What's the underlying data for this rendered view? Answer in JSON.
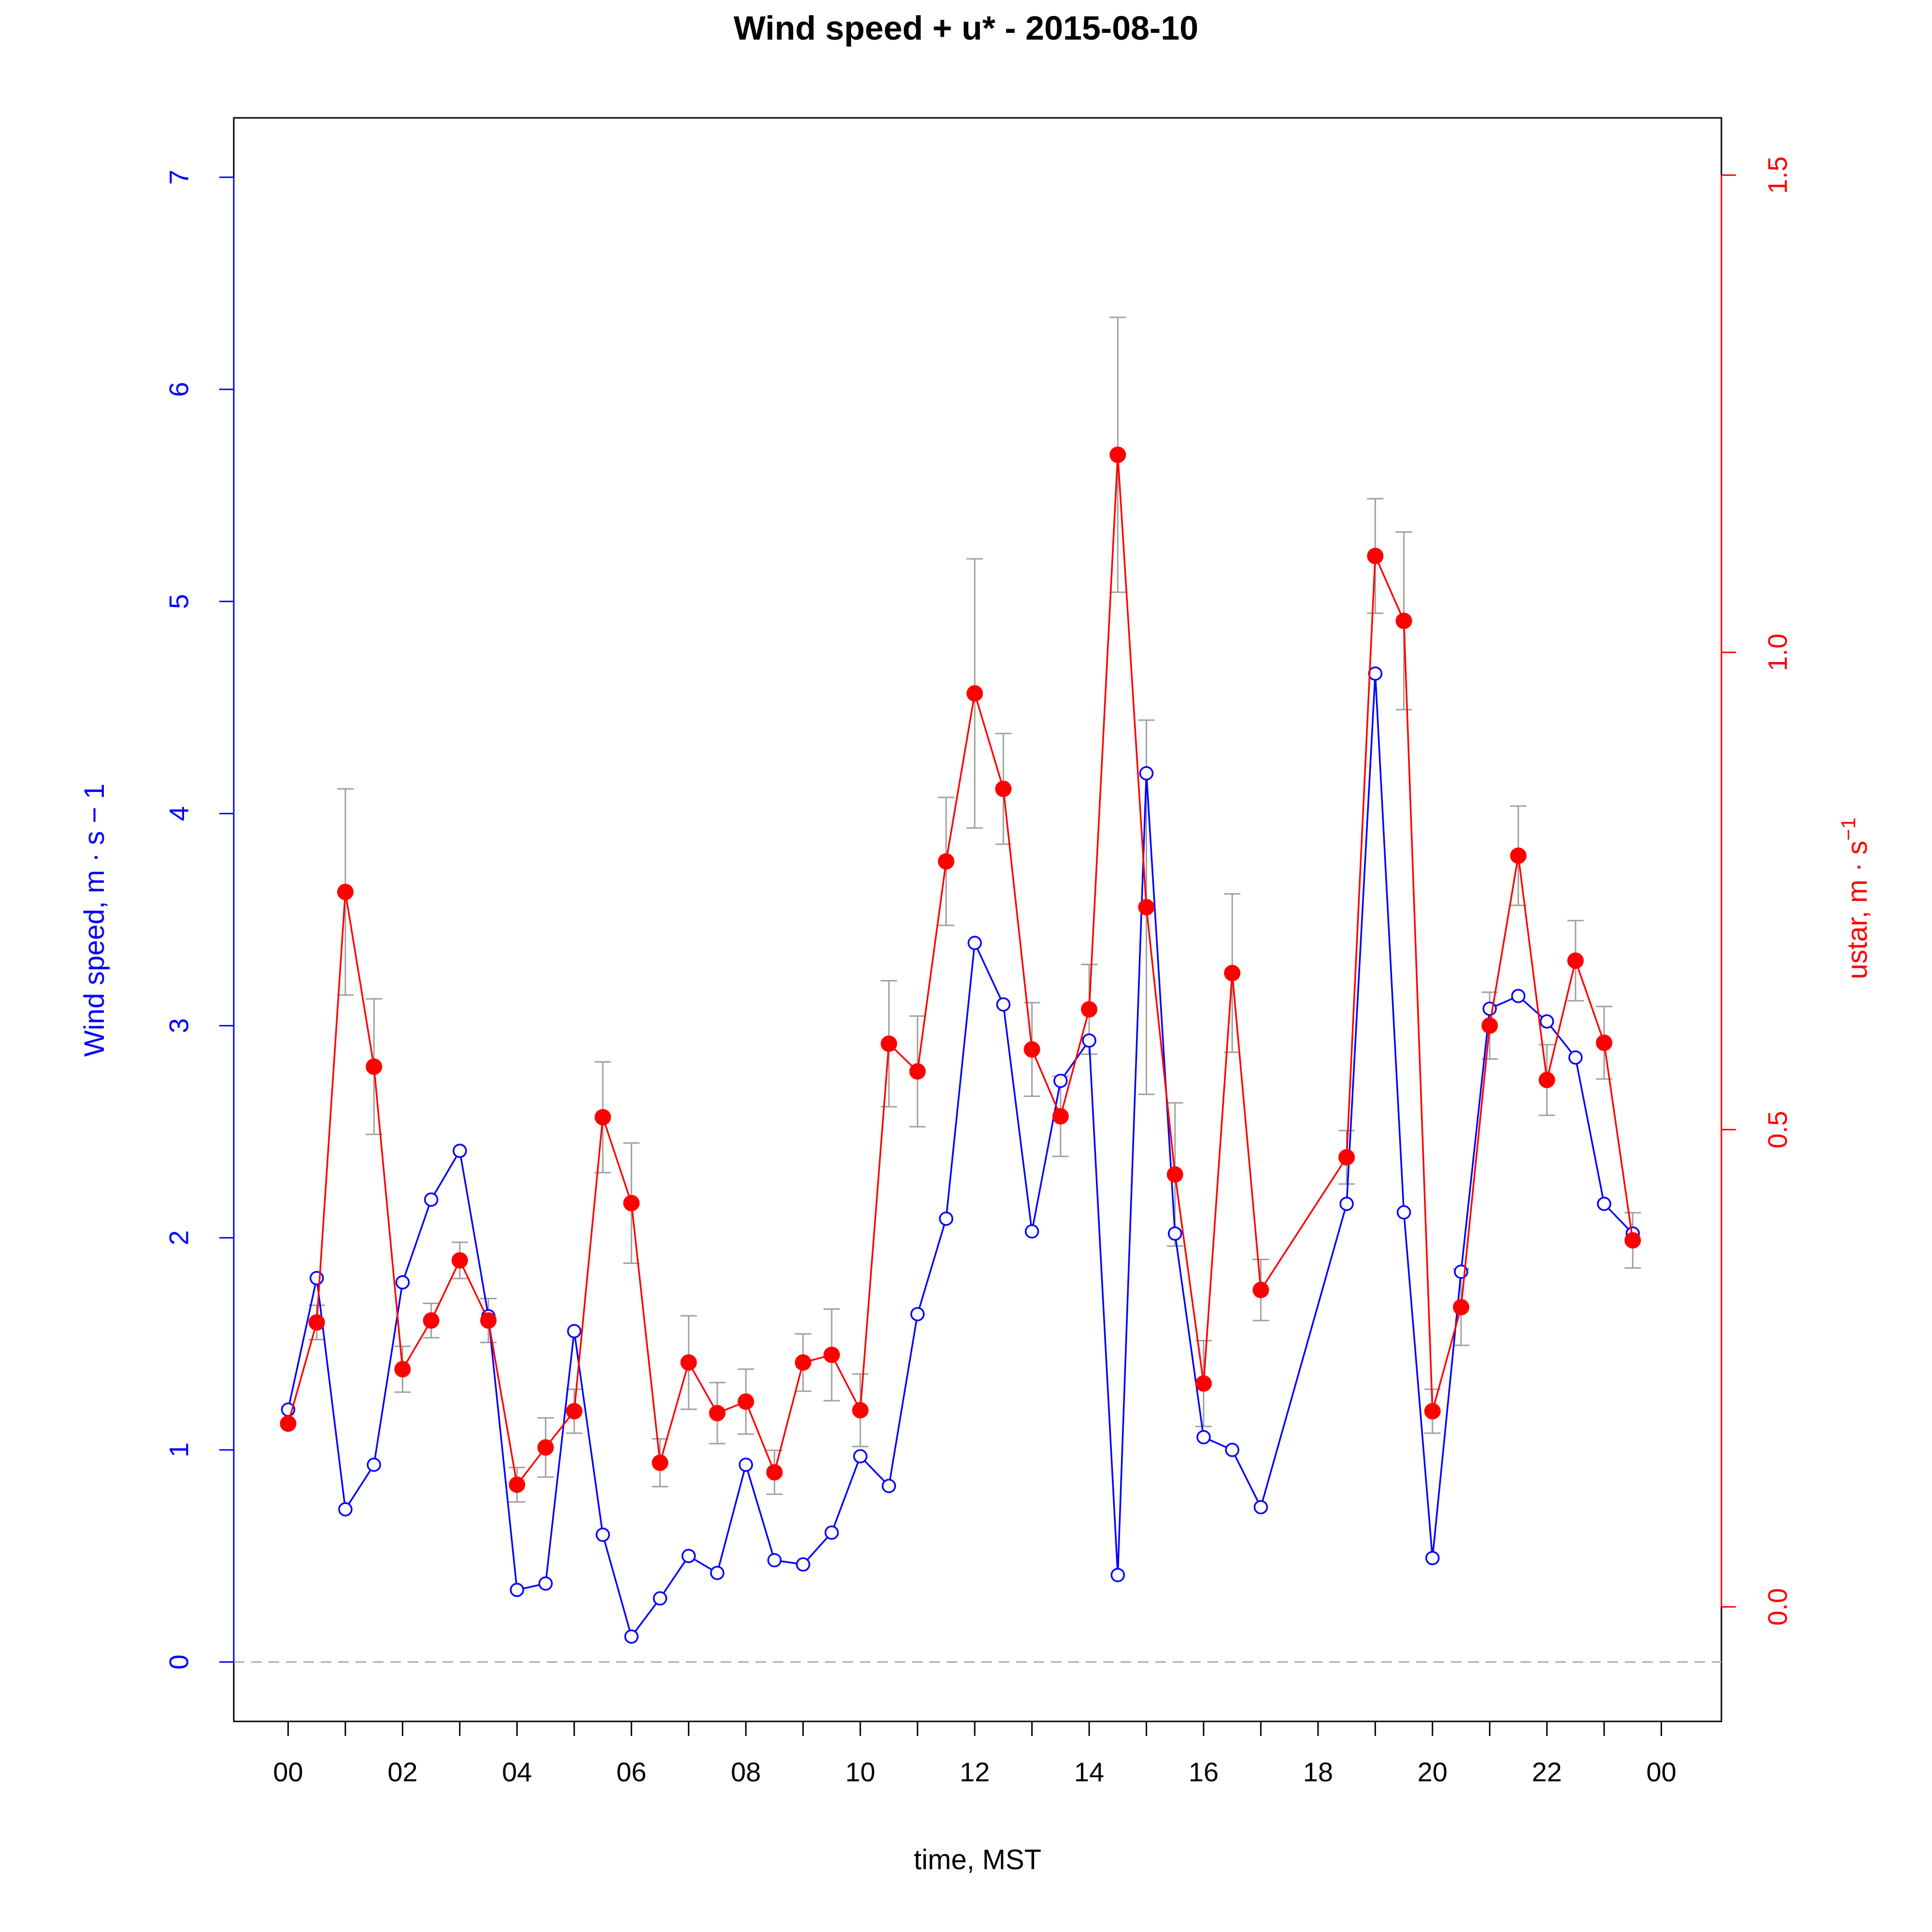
{
  "chart_data": {
    "type": "line",
    "title": "Wind speed + u* -  2015-08-10",
    "xlabel": "time, MST",
    "ylabel_left": "Wind speed, m · s − 1",
    "ylabel_right_base": "ustar, m · s",
    "ylabel_right_exp": "−1",
    "xlim": [
      -0.95,
      25.05
    ],
    "ylim_left": [
      -0.28,
      7.28
    ],
    "ylim_right": [
      -0.12,
      1.56
    ],
    "x_ticks": [
      0,
      1,
      2,
      3,
      4,
      5,
      6,
      7,
      8,
      9,
      10,
      11,
      12,
      13,
      14,
      15,
      16,
      17,
      18,
      19,
      20,
      21,
      22,
      23,
      24
    ],
    "x_tick_labels": [
      "00",
      "02",
      "04",
      "06",
      "08",
      "10",
      "12",
      "14",
      "16",
      "18",
      "20",
      "22",
      "00"
    ],
    "x_tick_label_positions": [
      0,
      2,
      4,
      6,
      8,
      10,
      12,
      14,
      16,
      18,
      20,
      22,
      24
    ],
    "y_left_ticks": [
      0,
      1,
      2,
      3,
      4,
      5,
      6,
      7
    ],
    "y_left_tick_labels": [
      "0",
      "1",
      "2",
      "3",
      "4",
      "5",
      "6",
      "7"
    ],
    "y_right_ticks": [
      0.0,
      0.5,
      1.0,
      1.5
    ],
    "y_right_tick_labels": [
      "0.0",
      "0.5",
      "1.0",
      "1.5"
    ],
    "reference_line_y": 0,
    "colors": {
      "wind": "#0000ff",
      "ustar": "#ff0000",
      "errorbar": "#a0a0a0",
      "reference": "#aaaaaa",
      "axis": "#000000"
    },
    "series": [
      {
        "name": "Wind speed",
        "axis": "left",
        "marker": "open-circle",
        "x": [
          0,
          0.5,
          1,
          1.5,
          2,
          2.5,
          3,
          3.5,
          4,
          4.5,
          5,
          5.5,
          6,
          6.5,
          7,
          7.5,
          8,
          8.5,
          9,
          9.5,
          10,
          10.5,
          11,
          11.5,
          12,
          12.5,
          13,
          13.5,
          14,
          14.5,
          15,
          15.5,
          16,
          16.5,
          17,
          18.5,
          19,
          19.5,
          20,
          20.5,
          21,
          21.5,
          22,
          22.5,
          23,
          23.5
        ],
        "values": [
          1.19,
          1.81,
          0.72,
          0.93,
          1.79,
          2.18,
          2.41,
          1.63,
          0.34,
          0.37,
          1.56,
          0.6,
          0.12,
          0.3,
          0.5,
          0.42,
          0.93,
          0.48,
          0.46,
          0.61,
          0.97,
          0.83,
          1.64,
          2.09,
          3.39,
          3.1,
          2.03,
          2.74,
          2.93,
          0.41,
          4.19,
          2.02,
          1.06,
          1.0,
          0.73,
          2.16,
          4.66,
          2.12,
          0.49,
          1.84,
          3.08,
          3.14,
          3.02,
          2.85,
          2.16,
          2.02
        ]
      },
      {
        "name": "ustar",
        "axis": "right",
        "marker": "filled-circle",
        "x": [
          0,
          0.5,
          1,
          1.5,
          2,
          2.5,
          3,
          3.5,
          4,
          4.5,
          5,
          5.5,
          6,
          6.5,
          7,
          7.5,
          8,
          8.5,
          9,
          9.5,
          10,
          10.5,
          11,
          11.5,
          12,
          12.5,
          13,
          13.5,
          14,
          14.5,
          15,
          15.5,
          16,
          16.5,
          17,
          18.5,
          19,
          19.5,
          20,
          20.5,
          21,
          21.5,
          22,
          22.5,
          23,
          23.5
        ],
        "values": [
          0.192,
          0.298,
          0.749,
          0.566,
          0.249,
          0.3,
          0.363,
          0.3,
          0.128,
          0.167,
          0.205,
          0.513,
          0.423,
          0.151,
          0.256,
          0.203,
          0.215,
          0.141,
          0.256,
          0.264,
          0.206,
          0.59,
          0.561,
          0.781,
          0.957,
          0.857,
          0.584,
          0.514,
          0.626,
          1.207,
          0.733,
          0.453,
          0.234,
          0.664,
          0.332,
          0.471,
          1.101,
          1.033,
          0.205,
          0.314,
          0.609,
          0.787,
          0.552,
          0.677,
          0.591,
          0.384
        ],
        "error": [
          null,
          0.018,
          0.108,
          0.071,
          0.024,
          0.018,
          0.019,
          0.023,
          0.018,
          0.031,
          0.023,
          0.058,
          0.063,
          0.025,
          0.049,
          0.032,
          0.034,
          0.023,
          0.03,
          0.048,
          0.038,
          0.066,
          0.058,
          0.067,
          0.141,
          0.058,
          0.049,
          0.042,
          0.047,
          0.144,
          0.196,
          0.075,
          0.045,
          0.083,
          0.032,
          0.028,
          0.06,
          0.093,
          0.023,
          0.04,
          0.035,
          0.052,
          0.037,
          0.042,
          0.038,
          0.029
        ]
      }
    ]
  }
}
